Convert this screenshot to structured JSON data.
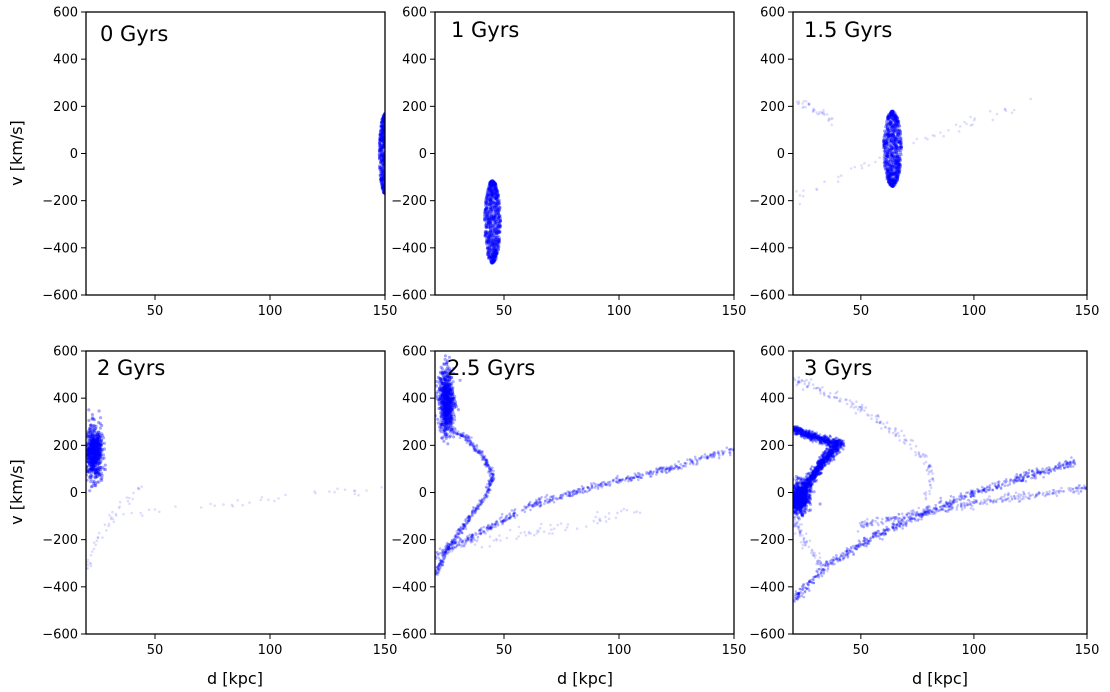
{
  "chart_data": {
    "type": "scatter",
    "layout": "2x3 grid",
    "point_color": "#0000ff",
    "xlabel": "d [kpc]",
    "ylabel": "v [km/s]",
    "xlim": [
      20,
      150
    ],
    "ylim": [
      -600,
      600
    ],
    "x_ticks": [
      50,
      100,
      150
    ],
    "y_ticks": [
      -600,
      -400,
      -200,
      0,
      200,
      400,
      600
    ],
    "grid": false,
    "panels": [
      {
        "title": "0 Gyrs",
        "structures": [
          {
            "kind": "lens",
            "x": 150,
            "y": 0,
            "dx": 2.5,
            "dy": 170,
            "density": 1.0
          }
        ]
      },
      {
        "title": "1 Gyrs",
        "structures": [
          {
            "kind": "lens",
            "x": 45,
            "y": -290,
            "dx": 3.5,
            "dy": 175,
            "density": 1.0
          }
        ]
      },
      {
        "title": "1.5 Gyrs",
        "structures": [
          {
            "kind": "lens",
            "x": 64,
            "y": 20,
            "dx": 4.0,
            "dy": 160,
            "density": 1.0
          },
          {
            "kind": "stream",
            "points": [
              [
                22,
                -180
              ],
              [
                45,
                -90
              ],
              [
                64,
                15
              ],
              [
                90,
                110
              ],
              [
                128,
                230
              ]
            ],
            "width": 12,
            "density": 0.06
          },
          {
            "kind": "stream",
            "points": [
              [
                22,
                220
              ],
              [
                30,
                180
              ],
              [
                38,
                140
              ]
            ],
            "width": 10,
            "density": 0.04
          }
        ]
      },
      {
        "title": "2 Gyrs",
        "structures": [
          {
            "kind": "blob",
            "x": 23.5,
            "y": 170,
            "dx": 3.0,
            "dy": 120,
            "density": 1.0
          },
          {
            "kind": "stream",
            "points": [
              [
                20,
                -320
              ],
              [
                26,
                -180
              ],
              [
                35,
                -60
              ],
              [
                45,
                20
              ]
            ],
            "width": 14,
            "density": 0.05
          },
          {
            "kind": "stream",
            "points": [
              [
                30,
                -110
              ],
              [
                60,
                -70
              ],
              [
                100,
                -30
              ],
              [
                150,
                30
              ]
            ],
            "width": 12,
            "density": 0.04
          }
        ]
      },
      {
        "title": "2.5 Gyrs",
        "structures": [
          {
            "kind": "blob",
            "x": 25,
            "y": 390,
            "dx": 2.6,
            "dy": 150,
            "density": 1.0
          },
          {
            "kind": "stream",
            "points": [
              [
                26,
                270
              ],
              [
                34,
                230
              ],
              [
                41,
                150
              ],
              [
                45,
                70
              ],
              [
                42,
                -20
              ],
              [
                34,
                -120
              ],
              [
                26,
                -230
              ],
              [
                20,
                -350
              ]
            ],
            "width": 8,
            "density": 0.55
          },
          {
            "kind": "stream",
            "points": [
              [
                20,
                -270
              ],
              [
                40,
                -170
              ],
              [
                60,
                -60
              ],
              [
                80,
                0
              ],
              [
                100,
                50
              ],
              [
                125,
                110
              ],
              [
                150,
                185
              ]
            ],
            "width": 9,
            "density": 0.6
          },
          {
            "kind": "stream",
            "points": [
              [
                20,
                -250
              ],
              [
                45,
                -200
              ],
              [
                80,
                -140
              ],
              [
                110,
                -70
              ]
            ],
            "width": 14,
            "density": 0.08
          }
        ]
      },
      {
        "title": "3 Gyrs",
        "structures": [
          {
            "kind": "stream",
            "points": [
              [
                22,
                -30
              ],
              [
                28,
                60
              ],
              [
                34,
                140
              ],
              [
                40,
                200
              ]
            ],
            "width": 14,
            "density": 1.0
          },
          {
            "kind": "blob",
            "x": 23,
            "y": -20,
            "dx": 3.5,
            "dy": 70,
            "density": 1.0
          },
          {
            "kind": "stream",
            "points": [
              [
                20,
                270
              ],
              [
                28,
                240
              ],
              [
                36,
                215
              ],
              [
                42,
                205
              ]
            ],
            "width": 10,
            "density": 0.75
          },
          {
            "kind": "stream",
            "points": [
              [
                20,
                -460
              ],
              [
                35,
                -310
              ],
              [
                55,
                -190
              ],
              [
                75,
                -100
              ],
              [
                95,
                -20
              ],
              [
                120,
                60
              ],
              [
                145,
                130
              ]
            ],
            "width": 10,
            "density": 0.7
          },
          {
            "kind": "stream",
            "points": [
              [
                50,
                -140
              ],
              [
                80,
                -80
              ],
              [
                110,
                -30
              ],
              [
                150,
                20
              ]
            ],
            "width": 10,
            "density": 0.35
          },
          {
            "kind": "stream",
            "points": [
              [
                20,
                480
              ],
              [
                35,
                420
              ],
              [
                50,
                350
              ],
              [
                65,
                260
              ],
              [
                78,
                150
              ],
              [
                82,
                60
              ],
              [
                78,
                -20
              ]
            ],
            "width": 12,
            "density": 0.18
          },
          {
            "kind": "stream",
            "points": [
              [
                20,
                -100
              ],
              [
                26,
                -220
              ],
              [
                34,
                -330
              ]
            ],
            "width": 14,
            "density": 0.1
          }
        ]
      }
    ]
  }
}
